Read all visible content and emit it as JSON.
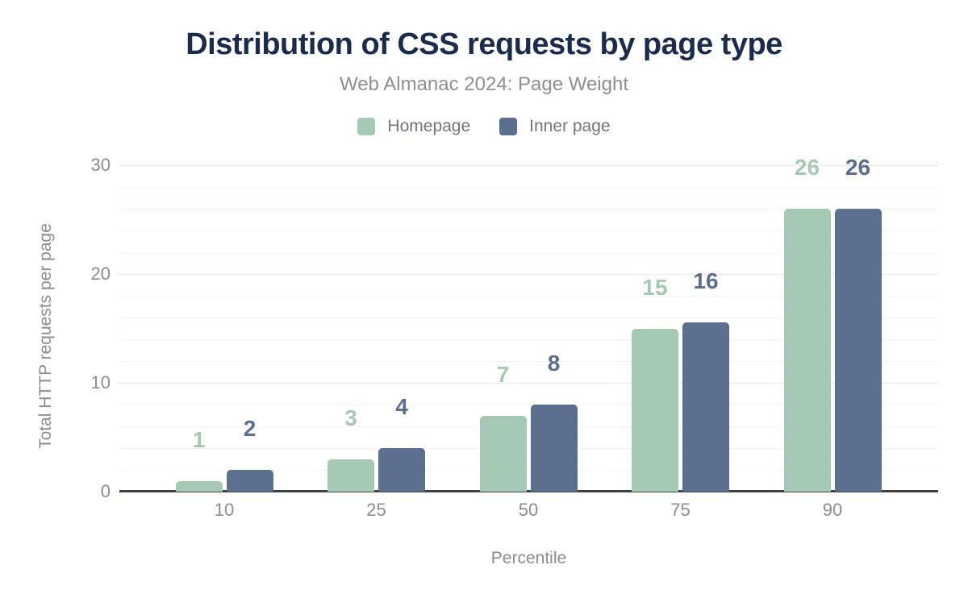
{
  "title": "Distribution of CSS requests by page type",
  "subtitle": "Web Almanac 2024: Page Weight",
  "x_axis_title": "Percentile",
  "y_axis_title": "Total HTTP requests per page",
  "legend": {
    "items": [
      {
        "label": "Homepage",
        "color": "#a6c9b5"
      },
      {
        "label": "Inner page",
        "color": "#5c6f8e"
      }
    ]
  },
  "colors": {
    "background": "#ffffff",
    "title": "#1a2b4b",
    "subtitle": "#8e8e94",
    "legend_text": "#75757d",
    "axis_text": "#8c8c92",
    "grid_major": "#e6e6e9",
    "grid_minor": "#f4f4f6",
    "baseline": "#3e4044",
    "homepage": "#a6c9b5",
    "inner_page": "#5c6f8e"
  },
  "chart_data": {
    "type": "bar",
    "title": "Distribution of CSS requests by page type",
    "subtitle": "Web Almanac 2024: Page Weight",
    "xlabel": "Percentile",
    "ylabel": "Total HTTP requests per page",
    "categories": [
      "10",
      "25",
      "50",
      "75",
      "90"
    ],
    "series": [
      {
        "name": "Homepage",
        "color": "#a6c9b5",
        "values": [
          1,
          3,
          7,
          15,
          26
        ],
        "labels": [
          "1",
          "3",
          "7",
          "15",
          "26"
        ],
        "bar_units": [
          1,
          3,
          7,
          15,
          26
        ]
      },
      {
        "name": "Inner page",
        "color": "#5c6f8e",
        "values": [
          2,
          4,
          8,
          16,
          26
        ],
        "labels": [
          "2",
          "4",
          "8",
          "16",
          "26"
        ],
        "bar_units": [
          2,
          4,
          8,
          15.55,
          26
        ]
      }
    ],
    "ylim": [
      0,
      30
    ],
    "yticks": [
      0,
      10,
      20,
      30
    ],
    "minor_grid_step": 2,
    "grid": true,
    "legend_position": "top",
    "bar_value_labels": true
  }
}
